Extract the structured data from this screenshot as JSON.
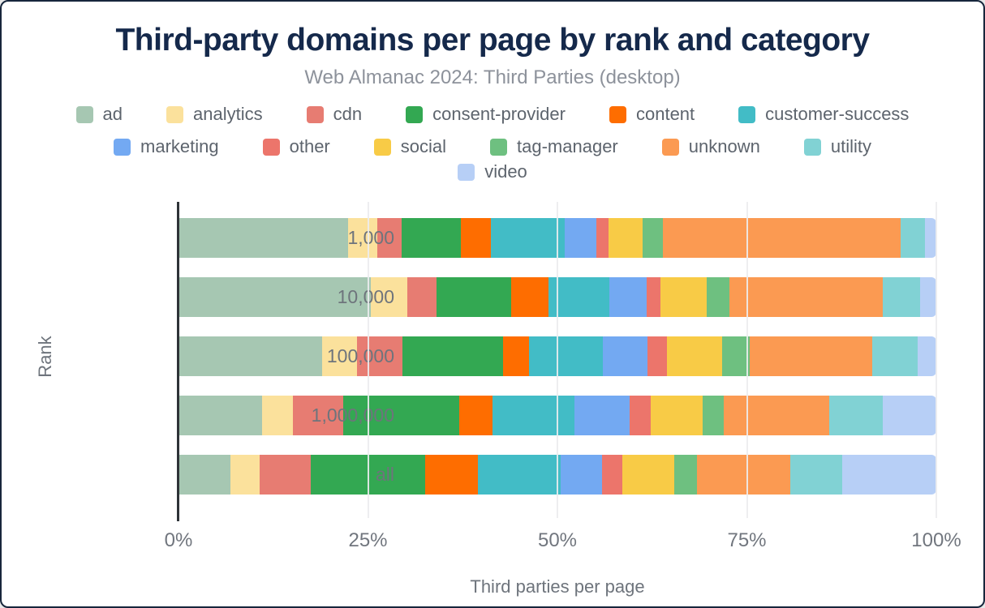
{
  "title": "Third-party domains per page by rank and category",
  "subtitle": "Web Almanac 2024: Third Parties (desktop)",
  "chart_data": {
    "type": "bar",
    "orientation": "horizontal",
    "stacked": true,
    "units": "percent",
    "title": "Third-party domains per page by rank and category",
    "subtitle": "Web Almanac 2024: Third Parties (desktop)",
    "xlabel": "Third parties per page",
    "ylabel": "Rank",
    "xlim": [
      0,
      100
    ],
    "x_ticks": [
      "0%",
      "25%",
      "50%",
      "75%",
      "100%"
    ],
    "x_tick_values": [
      0,
      25,
      50,
      75,
      100
    ],
    "grid": "vertical",
    "legend_position": "top",
    "legend_row_break_after": "customer-success",
    "categories": [
      "1,000",
      "10,000",
      "100,000",
      "1,000,000",
      "all"
    ],
    "series": [
      {
        "name": "ad",
        "color": "#a6c7b2",
        "values": [
          22.4,
          25.4,
          18.9,
          11.0,
          6.9
        ]
      },
      {
        "name": "analytics",
        "color": "#fbe19c",
        "values": [
          3.8,
          4.8,
          4.7,
          4.1,
          3.8
        ]
      },
      {
        "name": "cdn",
        "color": "#e77c72",
        "values": [
          3.2,
          3.9,
          5.9,
          6.6,
          6.8
        ]
      },
      {
        "name": "consent-provider",
        "color": "#33a852",
        "values": [
          7.9,
          9.8,
          13.3,
          15.4,
          15.1
        ]
      },
      {
        "name": "content",
        "color": "#fe6d00",
        "values": [
          3.9,
          4.9,
          3.5,
          4.3,
          6.9
        ]
      },
      {
        "name": "customer-success",
        "color": "#42bcc6",
        "values": [
          9.8,
          8.0,
          9.7,
          10.8,
          10.9
        ]
      },
      {
        "name": "marketing",
        "color": "#73a9f2",
        "values": [
          4.1,
          5.0,
          5.9,
          7.3,
          5.5
        ]
      },
      {
        "name": "other",
        "color": "#ec756b",
        "values": [
          1.6,
          1.8,
          2.6,
          2.8,
          2.7
        ]
      },
      {
        "name": "social",
        "color": "#f8cb46",
        "values": [
          4.6,
          6.1,
          7.2,
          6.9,
          6.8
        ]
      },
      {
        "name": "tag-manager",
        "color": "#6ec080",
        "values": [
          2.6,
          3.0,
          3.7,
          2.8,
          3.0
        ]
      },
      {
        "name": "unknown",
        "color": "#fb9a52",
        "values": [
          31.4,
          20.2,
          16.2,
          13.9,
          12.3
        ]
      },
      {
        "name": "utility",
        "color": "#81d2d4",
        "values": [
          3.2,
          5.0,
          6.0,
          7.0,
          6.9
        ]
      },
      {
        "name": "video",
        "color": "#b7cff6",
        "values": [
          1.5,
          2.1,
          2.4,
          7.1,
          12.4
        ]
      }
    ]
  }
}
